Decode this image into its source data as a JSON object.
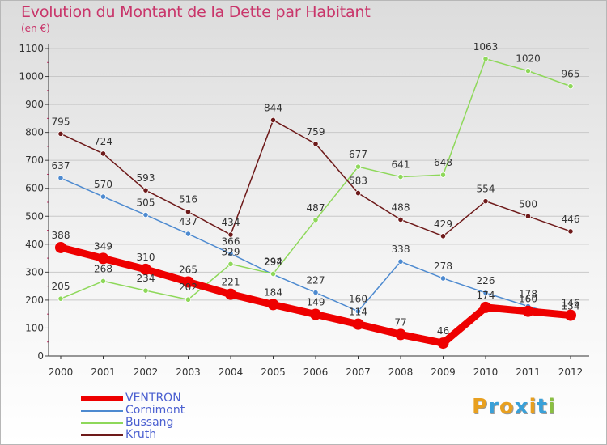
{
  "header": {
    "title": "Evolution du Montant de la Dette par Habitant",
    "subtitle": "(en €)"
  },
  "logo": {
    "text": "Proxiti",
    "letter_colors": [
      "#e8a020",
      "#3aa0d8",
      "#e8a020",
      "#3aa0d8",
      "#e8a020",
      "#3aa0d8",
      "#8ac040"
    ]
  },
  "chart_data": {
    "type": "line",
    "title": "Evolution du Montant de la Dette par Habitant",
    "subtitle": "(en €)",
    "xlabel": "",
    "ylabel": "",
    "x": [
      "2000",
      "2001",
      "2002",
      "2003",
      "2004",
      "2005",
      "2006",
      "2007",
      "2008",
      "2009",
      "2010",
      "2011",
      "2012"
    ],
    "ylim": [
      0,
      1100
    ],
    "yticks": [
      0,
      100,
      200,
      300,
      400,
      500,
      600,
      700,
      800,
      900,
      1000,
      1100
    ],
    "grid": true,
    "legend_position": "bottom-left",
    "series": [
      {
        "name": "VENTRON",
        "color": "#ee0000",
        "emphasis": true,
        "values": [
          388,
          349,
          310,
          265,
          221,
          184,
          149,
          114,
          77,
          46,
          174,
          160,
          146
        ]
      },
      {
        "name": "Cornimont",
        "color": "#4d8ad0",
        "values": [
          637,
          570,
          505,
          437,
          366,
          292,
          227,
          160,
          338,
          278,
          226,
          178,
          134
        ]
      },
      {
        "name": "Bussang",
        "color": "#8ed85a",
        "values": [
          205,
          268,
          234,
          202,
          329,
          294,
          487,
          677,
          641,
          648,
          1063,
          1020,
          965
        ]
      },
      {
        "name": "Kruth",
        "color": "#6e1a1a",
        "values": [
          795,
          724,
          593,
          516,
          434,
          844,
          759,
          583,
          488,
          429,
          554,
          500,
          446
        ]
      }
    ]
  }
}
